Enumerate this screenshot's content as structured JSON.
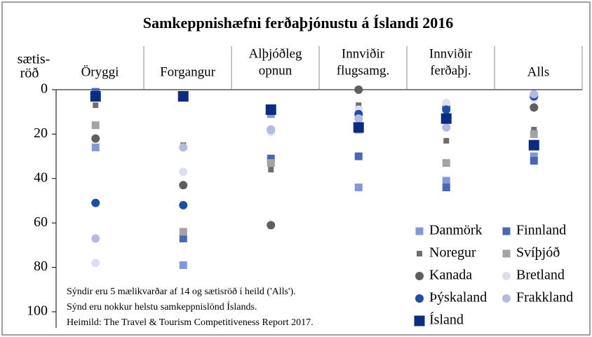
{
  "chart_data": {
    "type": "scatter",
    "title": "Samkeppnishæfni ferðaþjónustu á Íslandi 2016",
    "y_label": [
      "sætis-",
      "röð"
    ],
    "categories": [
      [
        "Öryggi"
      ],
      [
        "Forgangur"
      ],
      [
        "Alþjóðleg",
        "opnun"
      ],
      [
        "Innviðir",
        "flugsamg."
      ],
      [
        "Innviðir",
        "ferðaþj."
      ],
      [
        "Alls"
      ]
    ],
    "ylim": [
      0,
      100
    ],
    "yticks": [
      0,
      20,
      40,
      60,
      80,
      100
    ],
    "y_inverted": true,
    "notes": [
      "Sýndir eru 5 mælikvarðar af 14 og sætisröð í heild ('Alls').",
      "Sýnd eru nokkur helstu samkeppnislönd Íslands.",
      "Heimild: The Travel & Tourism Competitiveness Report 2017."
    ],
    "series": [
      {
        "name": "Danmörk",
        "color": "#8299d6",
        "marker": "square",
        "values": [
          26,
          79,
          11,
          44,
          41,
          30
        ]
      },
      {
        "name": "Finnland",
        "color": "#4a67b5",
        "marker": "square",
        "values": [
          1,
          67,
          31,
          30,
          44,
          32
        ]
      },
      {
        "name": "Noregur",
        "color": "#6e6e6e",
        "marker": "small-square",
        "values": [
          7,
          25,
          36,
          7,
          23,
          18
        ]
      },
      {
        "name": "Svíþjóð",
        "color": "#a3a3a3",
        "marker": "square",
        "values": [
          16,
          64,
          33,
          18,
          33,
          20
        ]
      },
      {
        "name": "Kanada",
        "color": "#5f5f5f",
        "marker": "circle",
        "values": [
          22,
          43,
          61,
          0,
          8,
          8
        ]
      },
      {
        "name": "Bretland",
        "color": "#dcdff0",
        "marker": "circle",
        "values": [
          78,
          37,
          19,
          9,
          6,
          4
        ]
      },
      {
        "name": "Þýskaland",
        "color": "#1f4ea6",
        "marker": "circle",
        "values": [
          51,
          52,
          18,
          11,
          9,
          3
        ]
      },
      {
        "name": "Frakkland",
        "color": "#b3bbe2",
        "marker": "circle",
        "values": [
          67,
          26,
          18,
          13,
          17,
          2
        ]
      },
      {
        "name": "Ísland",
        "color": "#0b2c7f",
        "marker": "large-square",
        "values": [
          3,
          3,
          9,
          17,
          13,
          25
        ]
      }
    ]
  }
}
